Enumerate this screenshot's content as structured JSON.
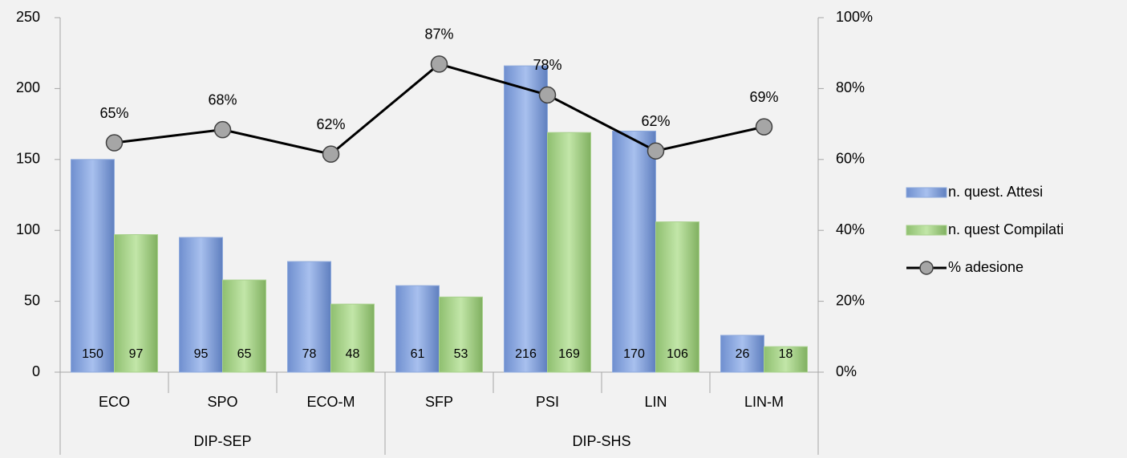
{
  "chart_data": {
    "type": "bar",
    "categories": [
      "ECO",
      "SPO",
      "ECO-M",
      "SFP",
      "PSI",
      "LIN",
      "LIN-M"
    ],
    "groups": [
      {
        "name": "DIP-SEP",
        "span": 3
      },
      {
        "name": "DIP-SHS",
        "span": 4
      }
    ],
    "series": [
      {
        "name": "n. quest. Attesi",
        "color": "#8faadc",
        "values": [
          150,
          95,
          78,
          61,
          216,
          170,
          26
        ]
      },
      {
        "name": "n. quest Compilati",
        "color": "#a9d18e",
        "values": [
          97,
          65,
          48,
          53,
          169,
          106,
          18
        ]
      },
      {
        "name": "% adesione",
        "type": "line",
        "axis": "y2",
        "color": "#000000",
        "marker_color": "#a6a6a6",
        "values": [
          64.7,
          68.4,
          61.5,
          86.9,
          78.2,
          62.4,
          69.2
        ],
        "value_labels": [
          "65%",
          "68%",
          "62%",
          "87%",
          "78%",
          "62%",
          "69%"
        ]
      }
    ],
    "ylim": [
      0,
      250
    ],
    "yticks": [
      0,
      50,
      100,
      150,
      200,
      250
    ],
    "y2lim": [
      0,
      100
    ],
    "y2ticks": [
      {
        "value": 0,
        "label": "0%"
      },
      {
        "value": 20,
        "label": "20%"
      },
      {
        "value": 40,
        "label": "40%"
      },
      {
        "value": 60,
        "label": "60%"
      },
      {
        "value": 80,
        "label": "80%"
      },
      {
        "value": 100,
        "label": "100%"
      }
    ],
    "legend": "right",
    "grid": false
  }
}
